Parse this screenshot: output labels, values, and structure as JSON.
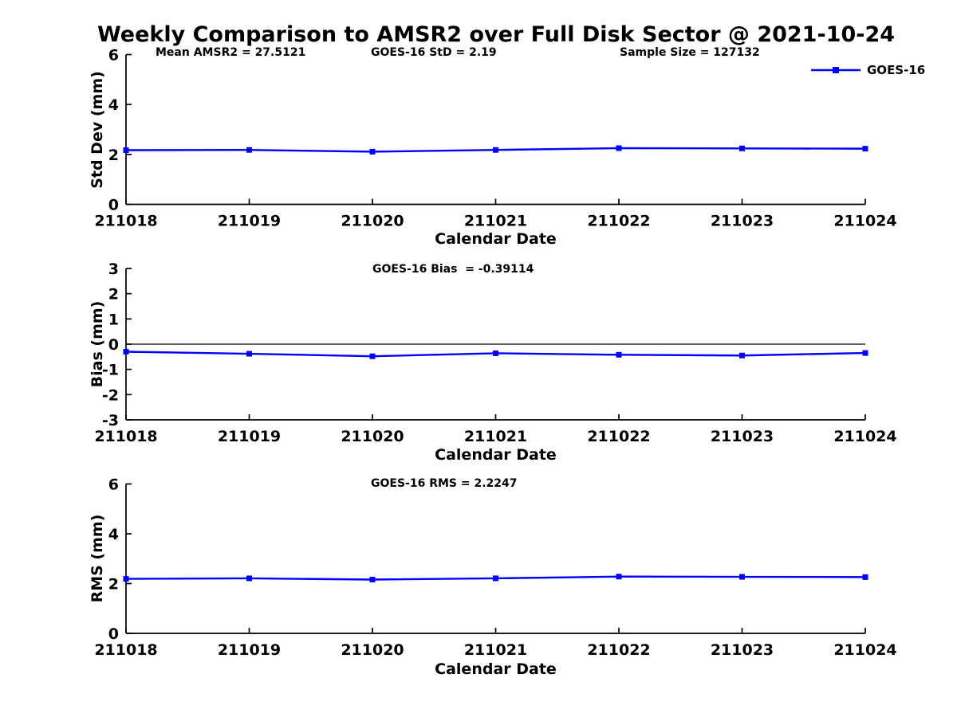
{
  "title": "Weekly Comparison to AMSR2 over Full Disk Sector @ 2021-10-24",
  "legend": {
    "label": "GOES-16"
  },
  "colors": {
    "line": "#0000ff",
    "axis": "#000000",
    "text": "#000000",
    "background": "#ffffff"
  },
  "chart_data": [
    {
      "type": "line",
      "title": "",
      "categories": [
        "211018",
        "211019",
        "211020",
        "211021",
        "211022",
        "211023",
        "211024"
      ],
      "series": [
        {
          "name": "GOES-16",
          "values": [
            2.17,
            2.18,
            2.11,
            2.18,
            2.25,
            2.24,
            2.23
          ]
        }
      ],
      "xlabel": "Calendar Date",
      "ylabel": "Std Dev (mm)",
      "ylim": [
        0,
        6
      ],
      "yticks": [
        0,
        2,
        4,
        6
      ],
      "grid": false,
      "zero_line": false,
      "legend_position": "top-right",
      "annotations": [
        "Mean AMSR2 = 27.5121",
        "GOES-16 StD = 2.19",
        "Sample Size = 127132"
      ]
    },
    {
      "type": "line",
      "title": "",
      "categories": [
        "211018",
        "211019",
        "211020",
        "211021",
        "211022",
        "211023",
        "211024"
      ],
      "series": [
        {
          "name": "GOES-16",
          "values": [
            -0.3,
            -0.38,
            -0.48,
            -0.36,
            -0.42,
            -0.45,
            -0.35
          ]
        }
      ],
      "xlabel": "Calendar Date",
      "ylabel": "Bias (mm)",
      "ylim": [
        -3,
        3
      ],
      "yticks": [
        -3,
        -2,
        -1,
        0,
        1,
        2,
        3
      ],
      "grid": false,
      "zero_line": true,
      "legend_position": "none",
      "annotations": [
        "GOES-16 Bias  = -0.39114"
      ]
    },
    {
      "type": "line",
      "title": "",
      "categories": [
        "211018",
        "211019",
        "211020",
        "211021",
        "211022",
        "211023",
        "211024"
      ],
      "series": [
        {
          "name": "GOES-16",
          "values": [
            2.19,
            2.21,
            2.16,
            2.21,
            2.28,
            2.27,
            2.26
          ]
        }
      ],
      "xlabel": "Calendar Date",
      "ylabel": "RMS (mm)",
      "ylim": [
        0,
        6
      ],
      "yticks": [
        0,
        2,
        4,
        6
      ],
      "grid": false,
      "zero_line": false,
      "legend_position": "none",
      "annotations": [
        "GOES-16 RMS = 2.2247"
      ]
    }
  ]
}
